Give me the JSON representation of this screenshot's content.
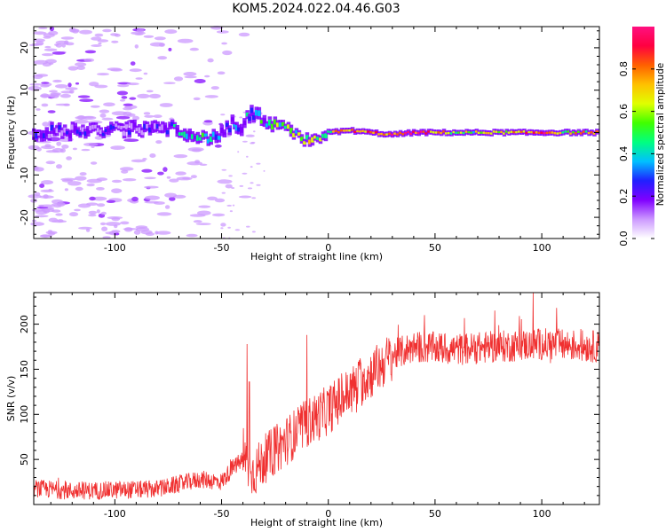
{
  "title": "KOM5.2024.022.04.46.G03",
  "colors": {
    "snr_line": "#f03030",
    "axis": "#000000",
    "colormap": [
      "#ffffff",
      "#cc99ff",
      "#8000ff",
      "#2020ff",
      "#00c0ff",
      "#00ff80",
      "#40ff00",
      "#e0ff00",
      "#ffc000",
      "#ff6000",
      "#ff0040",
      "#ff1080"
    ]
  },
  "chart_data": [
    {
      "type": "heatmap",
      "title": "",
      "xlabel": "Height of straight line (km)",
      "ylabel": "Frequency (Hz)",
      "xlim": [
        -138,
        127
      ],
      "ylim": [
        -25,
        25
      ],
      "xticks": [
        -100,
        -50,
        0,
        50,
        100
      ],
      "yticks": [
        -20,
        -10,
        0,
        10,
        20
      ],
      "colorbar": {
        "label": "Normalized spectral amplitude",
        "range": [
          0.0,
          1.0
        ],
        "ticks": [
          0.0,
          0.2,
          0.4,
          0.6,
          0.8
        ]
      },
      "ridge": [
        {
          "x": -138,
          "f": 0.0,
          "amp": 0.12
        },
        {
          "x": -80,
          "f": 1.0,
          "amp": 0.15
        },
        {
          "x": -72,
          "f": 1.0,
          "amp": 0.25
        },
        {
          "x": -65,
          "f": 0.0,
          "amp": 0.3
        },
        {
          "x": -60,
          "f": -1.5,
          "amp": 0.35
        },
        {
          "x": -55,
          "f": -1.0,
          "amp": 0.3
        },
        {
          "x": -50,
          "f": -0.5,
          "amp": 0.25
        },
        {
          "x": -45,
          "f": 2.0,
          "amp": 0.3
        },
        {
          "x": -42,
          "f": 0.0,
          "amp": 0.3
        },
        {
          "x": -38,
          "f": 3.5,
          "amp": 0.3
        },
        {
          "x": -35,
          "f": 4.5,
          "amp": 0.35
        },
        {
          "x": -30,
          "f": 2.5,
          "amp": 0.4
        },
        {
          "x": -25,
          "f": 1.5,
          "amp": 0.45
        },
        {
          "x": -20,
          "f": 1.0,
          "amp": 0.45
        },
        {
          "x": -15,
          "f": -0.5,
          "amp": 0.5
        },
        {
          "x": -10,
          "f": -2.0,
          "amp": 0.55
        },
        {
          "x": -5,
          "f": -1.0,
          "amp": 0.55
        },
        {
          "x": 0,
          "f": 0.0,
          "amp": 0.6
        },
        {
          "x": 10,
          "f": 0.5,
          "amp": 0.75
        },
        {
          "x": 20,
          "f": 0.0,
          "amp": 0.8
        },
        {
          "x": 30,
          "f": -0.5,
          "amp": 0.8
        },
        {
          "x": 40,
          "f": 0.0,
          "amp": 0.9
        },
        {
          "x": 60,
          "f": 0.0,
          "amp": 0.55
        },
        {
          "x": 80,
          "f": 0.0,
          "amp": 0.6
        },
        {
          "x": 100,
          "f": 0.0,
          "amp": 0.9
        },
        {
          "x": 110,
          "f": 0.0,
          "amp": 0.6
        },
        {
          "x": 127,
          "f": 0.0,
          "amp": 0.7
        }
      ]
    },
    {
      "type": "line",
      "title": "",
      "xlabel": "Height of straight line (km)",
      "ylabel": "SNR (v/v)",
      "xlim": [
        -138,
        127
      ],
      "ylim": [
        0,
        235
      ],
      "xticks": [
        -100,
        -50,
        0,
        50,
        100
      ],
      "yticks": [
        50,
        100,
        150,
        200
      ],
      "trend": [
        {
          "x": -138,
          "snr": 18
        },
        {
          "x": -120,
          "snr": 15
        },
        {
          "x": -100,
          "snr": 16
        },
        {
          "x": -80,
          "snr": 17
        },
        {
          "x": -60,
          "snr": 28
        },
        {
          "x": -50,
          "snr": 25
        },
        {
          "x": -45,
          "snr": 40
        },
        {
          "x": -40,
          "snr": 50
        },
        {
          "x": -35,
          "snr": 35
        },
        {
          "x": -30,
          "snr": 50
        },
        {
          "x": -20,
          "snr": 70
        },
        {
          "x": -10,
          "snr": 90
        },
        {
          "x": 0,
          "snr": 105
        },
        {
          "x": 10,
          "snr": 125
        },
        {
          "x": 20,
          "snr": 145
        },
        {
          "x": 30,
          "snr": 165
        },
        {
          "x": 40,
          "snr": 175
        },
        {
          "x": 60,
          "snr": 172
        },
        {
          "x": 80,
          "snr": 175
        },
        {
          "x": 100,
          "snr": 178
        },
        {
          "x": 127,
          "snr": 175
        }
      ],
      "spikes": [
        {
          "x": -38,
          "snr": 178
        },
        {
          "x": -37,
          "snr": 136
        },
        {
          "x": -10,
          "snr": 188
        },
        {
          "x": 15,
          "snr": 162
        },
        {
          "x": 45,
          "snr": 210
        },
        {
          "x": 78,
          "snr": 215
        },
        {
          "x": 96,
          "snr": 235
        },
        {
          "x": 107,
          "snr": 218
        }
      ]
    }
  ]
}
